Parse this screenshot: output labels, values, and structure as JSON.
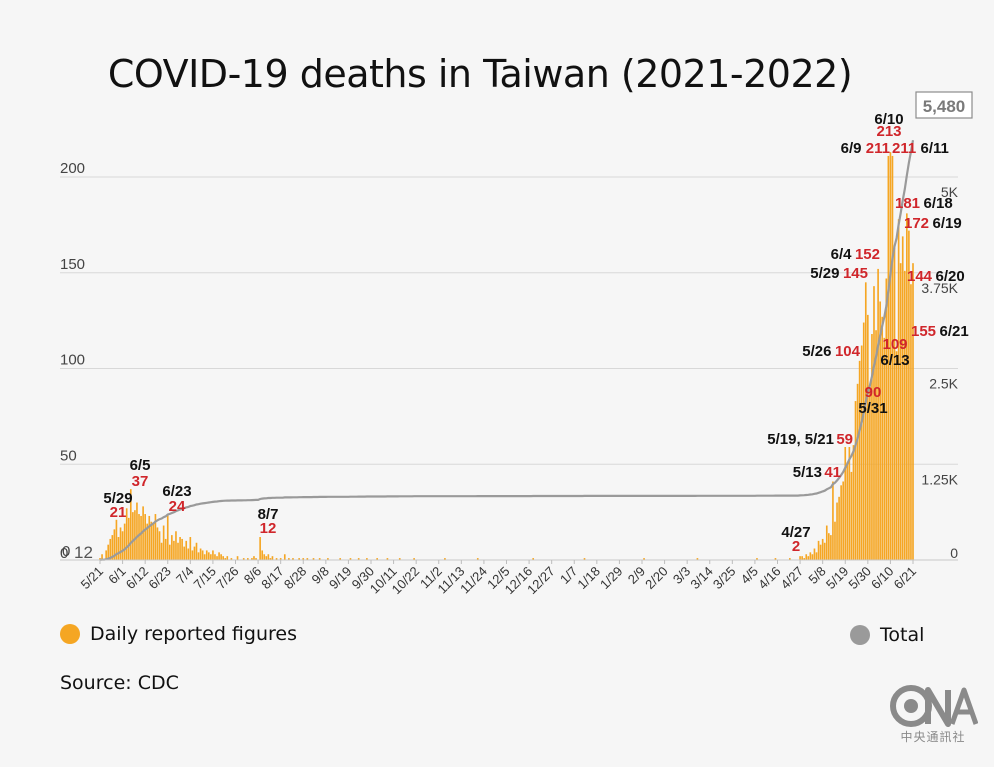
{
  "chart_data": {
    "type": "bar",
    "title": "COVID-19 deaths in Taiwan (2021-2022)",
    "left_axis": {
      "ticks": [
        0,
        50,
        100,
        150,
        200
      ],
      "tick_labels": [
        "0",
        "50",
        "100",
        "150",
        "200"
      ],
      "ylim": [
        0,
        225
      ]
    },
    "right_axis": {
      "ticks": [
        0,
        1250,
        2500,
        3750,
        5000
      ],
      "tick_labels": [
        "0",
        "1.25K",
        "2.5K",
        "3.75K",
        "5K"
      ],
      "ylim": [
        0,
        5625
      ]
    },
    "x_tick_labels": [
      "5/21",
      "6/1",
      "6/12",
      "6/23",
      "7/4",
      "7/15",
      "7/26",
      "8/6",
      "8/17",
      "8/28",
      "9/8",
      "9/19",
      "9/30",
      "10/11",
      "10/22",
      "11/2",
      "11/13",
      "11/24",
      "12/5",
      "12/16",
      "12/27",
      "1/7",
      "1/18",
      "1/29",
      "2/9",
      "2/20",
      "3/3",
      "3/14",
      "3/25",
      "4/5",
      "4/16",
      "4/27",
      "5/8",
      "5/19",
      "5/30",
      "6/10",
      "6/21"
    ],
    "grid": true,
    "legend_position": "bottom",
    "series": [
      {
        "name": "Daily reported figures",
        "color": "#f5a623"
      },
      {
        "name": "Total",
        "color": "#9a9a9a"
      }
    ],
    "daily_keypoints": [
      [
        "2021-05-21",
        1
      ],
      [
        "2021-05-22",
        3
      ],
      [
        "2021-05-24",
        5
      ],
      [
        "2021-05-25",
        8
      ],
      [
        "2021-05-26",
        11
      ],
      [
        "2021-05-27",
        13
      ],
      [
        "2021-05-28",
        16
      ],
      [
        "2021-05-29",
        21
      ],
      [
        "2021-05-30",
        12
      ],
      [
        "2021-05-31",
        17
      ],
      [
        "2021-06-01",
        15
      ],
      [
        "2021-06-02",
        19
      ],
      [
        "2021-06-03",
        27
      ],
      [
        "2021-06-04",
        22
      ],
      [
        "2021-06-05",
        37
      ],
      [
        "2021-06-06",
        25
      ],
      [
        "2021-06-07",
        26
      ],
      [
        "2021-06-08",
        30
      ],
      [
        "2021-06-09",
        24
      ],
      [
        "2021-06-10",
        23
      ],
      [
        "2021-06-11",
        28
      ],
      [
        "2021-06-12",
        24
      ],
      [
        "2021-06-13",
        19
      ],
      [
        "2021-06-14",
        23
      ],
      [
        "2021-06-15",
        20
      ],
      [
        "2021-06-16",
        19
      ],
      [
        "2021-06-17",
        24
      ],
      [
        "2021-06-18",
        17
      ],
      [
        "2021-06-19",
        15
      ],
      [
        "2021-06-20",
        9
      ],
      [
        "2021-06-21",
        18
      ],
      [
        "2021-06-22",
        11
      ],
      [
        "2021-06-23",
        24
      ],
      [
        "2021-06-24",
        8
      ],
      [
        "2021-06-25",
        13
      ],
      [
        "2021-06-26",
        10
      ],
      [
        "2021-06-27",
        15
      ],
      [
        "2021-06-28",
        9
      ],
      [
        "2021-06-29",
        12
      ],
      [
        "2021-06-30",
        11
      ],
      [
        "2021-07-01",
        7
      ],
      [
        "2021-07-02",
        10
      ],
      [
        "2021-07-03",
        6
      ],
      [
        "2021-07-04",
        12
      ],
      [
        "2021-07-05",
        5
      ],
      [
        "2021-07-06",
        7
      ],
      [
        "2021-07-07",
        9
      ],
      [
        "2021-07-08",
        4
      ],
      [
        "2021-07-09",
        6
      ],
      [
        "2021-07-10",
        5
      ],
      [
        "2021-07-11",
        3
      ],
      [
        "2021-07-12",
        5
      ],
      [
        "2021-07-13",
        4
      ],
      [
        "2021-07-14",
        3
      ],
      [
        "2021-07-15",
        5
      ],
      [
        "2021-07-16",
        3
      ],
      [
        "2021-07-17",
        2
      ],
      [
        "2021-07-18",
        4
      ],
      [
        "2021-07-19",
        3
      ],
      [
        "2021-07-20",
        2
      ],
      [
        "2021-07-21",
        1
      ],
      [
        "2021-07-22",
        2
      ],
      [
        "2021-07-24",
        1
      ],
      [
        "2021-07-27",
        2
      ],
      [
        "2021-07-30",
        1
      ],
      [
        "2021-08-01",
        1
      ],
      [
        "2021-08-03",
        1
      ],
      [
        "2021-08-04",
        2
      ],
      [
        "2021-08-05",
        1
      ],
      [
        "2021-08-07",
        12
      ],
      [
        "2021-08-08",
        5
      ],
      [
        "2021-08-09",
        3
      ],
      [
        "2021-08-10",
        2
      ],
      [
        "2021-08-11",
        3
      ],
      [
        "2021-08-12",
        1
      ],
      [
        "2021-08-13",
        2
      ],
      [
        "2021-08-15",
        1
      ],
      [
        "2021-08-17",
        1
      ],
      [
        "2021-08-19",
        3
      ],
      [
        "2021-08-21",
        1
      ],
      [
        "2021-08-23",
        1
      ],
      [
        "2021-08-26",
        1
      ],
      [
        "2021-08-28",
        1
      ],
      [
        "2021-08-30",
        1
      ],
      [
        "2021-09-02",
        1
      ],
      [
        "2021-09-05",
        1
      ],
      [
        "2021-09-09",
        1
      ],
      [
        "2021-09-15",
        1
      ],
      [
        "2021-09-20",
        1
      ],
      [
        "2021-09-24",
        1
      ],
      [
        "2021-09-28",
        1
      ],
      [
        "2021-10-03",
        1
      ],
      [
        "2021-10-08",
        1
      ],
      [
        "2021-10-14",
        1
      ],
      [
        "2021-10-21",
        1
      ],
      [
        "2021-11-05",
        1
      ],
      [
        "2021-11-21",
        1
      ],
      [
        "2021-12-18",
        1
      ],
      [
        "2022-01-12",
        1
      ],
      [
        "2022-02-10",
        1
      ],
      [
        "2022-03-08",
        1
      ],
      [
        "2022-04-06",
        1
      ],
      [
        "2022-04-15",
        1
      ],
      [
        "2022-04-22",
        1
      ],
      [
        "2022-04-27",
        2
      ],
      [
        "2022-04-28",
        2
      ],
      [
        "2022-04-29",
        1
      ],
      [
        "2022-04-30",
        3
      ],
      [
        "2022-05-01",
        2
      ],
      [
        "2022-05-02",
        4
      ],
      [
        "2022-05-03",
        3
      ],
      [
        "2022-05-04",
        6
      ],
      [
        "2022-05-05",
        4
      ],
      [
        "2022-05-06",
        10
      ],
      [
        "2022-05-07",
        8
      ],
      [
        "2022-05-08",
        11
      ],
      [
        "2022-05-09",
        9
      ],
      [
        "2022-05-10",
        18
      ],
      [
        "2022-05-11",
        14
      ],
      [
        "2022-05-12",
        13
      ],
      [
        "2022-05-13",
        41
      ],
      [
        "2022-05-14",
        20
      ],
      [
        "2022-05-15",
        30
      ],
      [
        "2022-05-16",
        33
      ],
      [
        "2022-05-17",
        39
      ],
      [
        "2022-05-18",
        41
      ],
      [
        "2022-05-19",
        59
      ],
      [
        "2022-05-20",
        51
      ],
      [
        "2022-05-21",
        59
      ],
      [
        "2022-05-22",
        46
      ],
      [
        "2022-05-23",
        60
      ],
      [
        "2022-05-24",
        83
      ],
      [
        "2022-05-25",
        92
      ],
      [
        "2022-05-26",
        104
      ],
      [
        "2022-05-27",
        112
      ],
      [
        "2022-05-28",
        124
      ],
      [
        "2022-05-29",
        145
      ],
      [
        "2022-05-30",
        128
      ],
      [
        "2022-05-31",
        90
      ],
      [
        "2022-06-01",
        118
      ],
      [
        "2022-06-02",
        143
      ],
      [
        "2022-06-03",
        120
      ],
      [
        "2022-06-04",
        152
      ],
      [
        "2022-06-05",
        135
      ],
      [
        "2022-06-06",
        127
      ],
      [
        "2022-06-07",
        116
      ],
      [
        "2022-06-08",
        147
      ],
      [
        "2022-06-09",
        211
      ],
      [
        "2022-06-10",
        213
      ],
      [
        "2022-06-11",
        211
      ],
      [
        "2022-06-12",
        163
      ],
      [
        "2022-06-13",
        109
      ],
      [
        "2022-06-14",
        178
      ],
      [
        "2022-06-15",
        155
      ],
      [
        "2022-06-16",
        169
      ],
      [
        "2022-06-17",
        151
      ],
      [
        "2022-06-18",
        181
      ],
      [
        "2022-06-19",
        172
      ],
      [
        "2022-06-20",
        144
      ],
      [
        "2022-06-21",
        155
      ]
    ],
    "total_final": "5,480",
    "annotations": [
      {
        "date_label": "5/29",
        "value": "21",
        "x_date": "2021-05-29"
      },
      {
        "date_label": "6/5",
        "value": "37",
        "x_date": "2021-06-05"
      },
      {
        "date_label": "6/23",
        "value": "24",
        "x_date": "2021-06-23"
      },
      {
        "date_label": "8/7",
        "value": "12",
        "x_date": "2021-08-07"
      },
      {
        "date_label": "4/27",
        "value": "2",
        "x_date": "2022-04-27"
      },
      {
        "date_label": "5/13",
        "value": "41",
        "x_date": "2022-05-13"
      },
      {
        "date_label": "5/19, 5/21",
        "value": "59",
        "x_date": "2022-05-19"
      },
      {
        "date_label": "5/26",
        "value": "104",
        "x_date": "2022-05-26"
      },
      {
        "date_label": "5/29",
        "value": "145",
        "x_date": "2022-05-29"
      },
      {
        "date_label": "5/31",
        "value": "90",
        "x_date": "2022-05-31"
      },
      {
        "date_label": "6/4",
        "value": "152",
        "x_date": "2022-06-04"
      },
      {
        "date_label": "6/9",
        "value": "211",
        "x_date": "2022-06-09"
      },
      {
        "date_label": "6/10",
        "value": "213",
        "x_date": "2022-06-10"
      },
      {
        "date_label": "6/11",
        "value": "211",
        "x_date": "2022-06-11"
      },
      {
        "date_label": "6/13",
        "value": "109",
        "x_date": "2022-06-13"
      },
      {
        "date_label": "6/18",
        "value": "181",
        "x_date": "2022-06-18"
      },
      {
        "date_label": "6/19",
        "value": "172",
        "x_date": "2022-06-19"
      },
      {
        "date_label": "6/20",
        "value": "144",
        "x_date": "2022-06-20"
      },
      {
        "date_label": "6/21",
        "value": "155",
        "x_date": "2022-06-21"
      }
    ],
    "start_labels": {
      "daily": "0",
      "total": "12"
    }
  },
  "legend": {
    "daily_label": "Daily reported figures",
    "total_label": "Total"
  },
  "source": "Source: CDC",
  "logo": {
    "caption": "中央通訊社",
    "icon": "cna-logo-icon"
  },
  "colors": {
    "bar": "#f5a623",
    "line": "#9a9a9a",
    "annotation_value": "#d0262b",
    "annotation_date": "#111111",
    "grid": "#d8d8d8"
  }
}
